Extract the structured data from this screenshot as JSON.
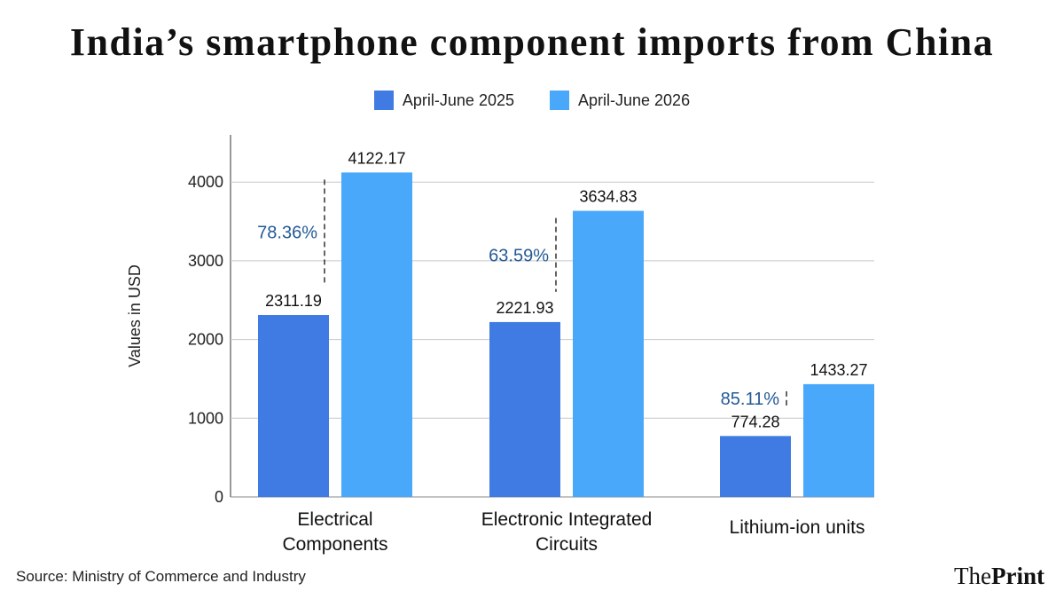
{
  "chart_data": {
    "type": "bar",
    "title": "India’s smartphone component imports from China",
    "ylabel": "Values in USD",
    "xlabel": "",
    "ylim": [
      0,
      4600
    ],
    "yticks": [
      0,
      1000,
      2000,
      3000,
      4000
    ],
    "grid": true,
    "legend_position": "top-center",
    "categories": [
      [
        "Electrical",
        "Components"
      ],
      [
        "Electronic Integrated",
        "Circuits"
      ],
      [
        "Lithium-ion units"
      ]
    ],
    "series": [
      {
        "name": "April-June 2025",
        "color": "#3f7be3",
        "values": [
          2311.19,
          2221.93,
          774.28
        ]
      },
      {
        "name": "April-June 2026",
        "color": "#4aa8fb",
        "values": [
          4122.17,
          3634.83,
          1433.27
        ]
      }
    ],
    "value_labels": [
      [
        "2311.19",
        "2221.93",
        "774.28"
      ],
      [
        "4122.17",
        "3634.83",
        "1433.27"
      ]
    ],
    "growth_labels": [
      "78.36%",
      "63.59%",
      "85.11%"
    ],
    "growth_color": "#245a96"
  },
  "footer": {
    "source": "Source: Ministry of Commerce and Industry",
    "brand_prefix": "The",
    "brand_bold": "Print"
  }
}
